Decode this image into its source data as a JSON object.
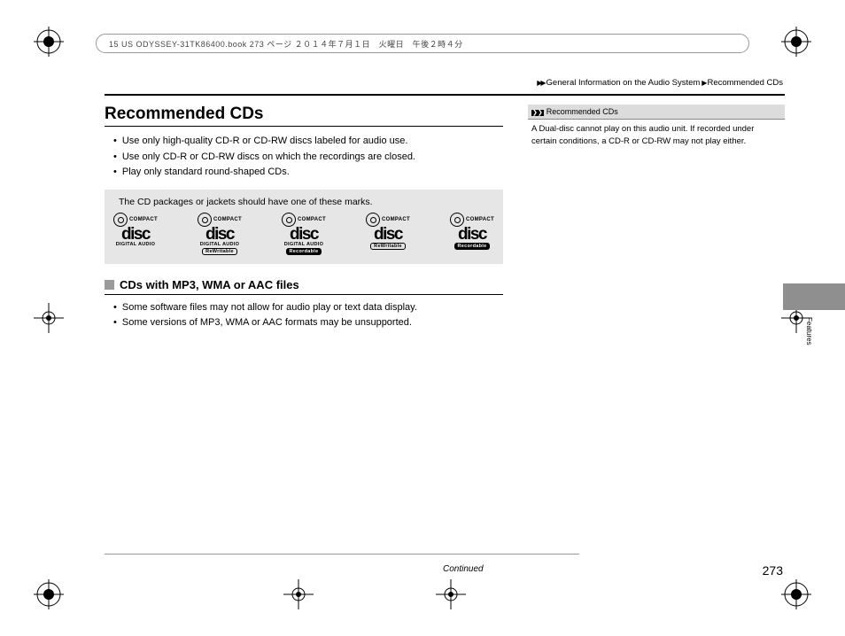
{
  "header": {
    "text": "15 US ODYSSEY-31TK86400.book  273 ページ  ２０１４年７月１日　火曜日　午後２時４分"
  },
  "breadcrumb": {
    "part1": "General Information on the Audio System",
    "part2": "Recommended CDs"
  },
  "title": "Recommended CDs",
  "bullets_main": [
    "Use only high-quality CD-R or CD-RW discs labeled for audio use.",
    "Use only CD-R or CD-RW discs on which the recordings are closed.",
    "Play only standard round-shaped CDs."
  ],
  "logo_box": {
    "caption": "The CD packages or jackets should have one of these marks.",
    "logos": [
      {
        "compact": "COMPACT",
        "disc": "disc",
        "line1": "DIGITAL AUDIO",
        "sub": "",
        "sub_style": "none"
      },
      {
        "compact": "COMPACT",
        "disc": "disc",
        "line1": "DIGITAL AUDIO",
        "sub": "ReWritable",
        "sub_style": "light"
      },
      {
        "compact": "COMPACT",
        "disc": "disc",
        "line1": "DIGITAL AUDIO",
        "sub": "Recordable",
        "sub_style": "dark"
      },
      {
        "compact": "COMPACT",
        "disc": "disc",
        "line1": "",
        "sub": "ReWritable",
        "sub_style": "light"
      },
      {
        "compact": "COMPACT",
        "disc": "disc",
        "line1": "",
        "sub": "Recordable",
        "sub_style": "dark"
      }
    ]
  },
  "subhead": "CDs with MP3, WMA or AAC files",
  "bullets_sub": [
    "Some software files may not allow for audio play or text data display.",
    "Some versions of MP3, WMA or AAC formats may be unsupported."
  ],
  "sidebar": {
    "header": "Recommended CDs",
    "body": "A Dual-disc cannot play on this audio unit. If recorded under certain conditions, a CD-R or CD-RW may not play either."
  },
  "tab_label": "Features",
  "continued": "Continued",
  "page_number": "273",
  "colors": {
    "box_bg": "#e6e6e6",
    "tab_bg": "#8f8f8f",
    "square": "#9a9a9a"
  }
}
